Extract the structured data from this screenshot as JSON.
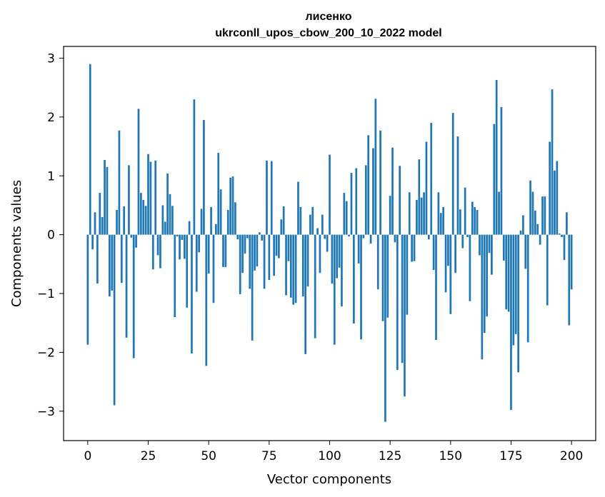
{
  "chart_data": {
    "type": "bar",
    "title_lines": [
      "лисенко",
      "ukrconll_upos_cbow_200_10_2022 model"
    ],
    "xlabel": "Vector components",
    "ylabel": "Components values",
    "xlim": [
      -10,
      210
    ],
    "ylim": [
      -3.5,
      3.2
    ],
    "xticks": [
      0,
      25,
      50,
      75,
      100,
      125,
      150,
      175,
      200
    ],
    "xtick_labels": [
      "0",
      "25",
      "50",
      "75",
      "100",
      "125",
      "150",
      "175",
      "200"
    ],
    "yticks": [
      -3,
      -2,
      -1,
      0,
      1,
      2,
      3
    ],
    "ytick_labels": [
      "−3",
      "−2",
      "−1",
      "0",
      "1",
      "2",
      "3"
    ],
    "grid": false,
    "bar_color": "#1f77b4",
    "values": [
      -1.87,
      2.9,
      -0.25,
      0.38,
      -0.83,
      0.71,
      0.3,
      1.27,
      1.15,
      -1.05,
      -0.95,
      -2.9,
      0.42,
      1.77,
      -0.82,
      0.48,
      -1.75,
      1.18,
      -0.05,
      -2.1,
      -0.22,
      2.14,
      0.71,
      0.59,
      0.49,
      1.37,
      1.24,
      -0.59,
      1.26,
      -0.35,
      -0.57,
      0.5,
      0.22,
      1.04,
      0.69,
      0.49,
      -1.4,
      -0.03,
      -0.42,
      -0.09,
      -0.41,
      -1.24,
      0.23,
      -2.02,
      2.3,
      -0.97,
      -0.3,
      0.44,
      1.95,
      -2.23,
      -0.66,
      0.47,
      -1.16,
      0.18,
      1.39,
      0.77,
      -0.55,
      -0.55,
      0.42,
      0.97,
      0.99,
      0.55,
      -0.08,
      -1.01,
      -0.65,
      -0.32,
      -0.06,
      -0.92,
      -1.8,
      -0.61,
      -0.54,
      0.04,
      -0.1,
      -0.92,
      1.26,
      -0.77,
      1.25,
      -0.7,
      -0.36,
      -0.4,
      0.26,
      0.48,
      -1.03,
      -0.45,
      -1.07,
      -1.19,
      -1.16,
      0.9,
      0.47,
      -1.05,
      -2.03,
      -0.88,
      0.34,
      0.47,
      -1.76,
      0.11,
      -0.65,
      0.34,
      -0.07,
      -0.29,
      1.36,
      -0.83,
      -1.87,
      -0.74,
      -0.56,
      -1.22,
      0.71,
      0.57,
      -0.03,
      1.05,
      -1.51,
      1.13,
      -0.49,
      -1.78,
      -0.06,
      1.18,
      1.69,
      -0.15,
      1.47,
      2.31,
      -0.93,
      1.77,
      -1.47,
      -3.18,
      -1.41,
      0.66,
      1.48,
      -0.13,
      -2.3,
      1.17,
      -2.18,
      -2.75,
      -1.36,
      0.72,
      -0.46,
      -0.45,
      0.59,
      1.28,
      0.63,
      0.72,
      1.58,
      -0.08,
      1.9,
      -0.6,
      -1.79,
      0.72,
      0.37,
      0.47,
      -0.98,
      -0.53,
      -1.35,
      2.07,
      -0.65,
      1.67,
      0.43,
      -0.23,
      0.8,
      -0.04,
      -1.13,
      0.56,
      0.47,
      0.42,
      -0.35,
      -2.12,
      -1.67,
      -1.39,
      -0.31,
      -0.68,
      1.88,
      2.63,
      0.73,
      2.17,
      -0.44,
      -1.27,
      -1.31,
      -2.98,
      -1.88,
      -1.69,
      -2.34,
      0.07,
      0.33,
      -0.58,
      -1.83,
      0.92,
      0.73,
      0.41,
      0.18,
      -0.17,
      0.65,
      0.65,
      -1.2,
      1.58,
      2.47,
      1.09,
      1.25,
      0.02,
      -0.04,
      -0.43,
      0.38,
      -1.54,
      -0.93
    ]
  }
}
